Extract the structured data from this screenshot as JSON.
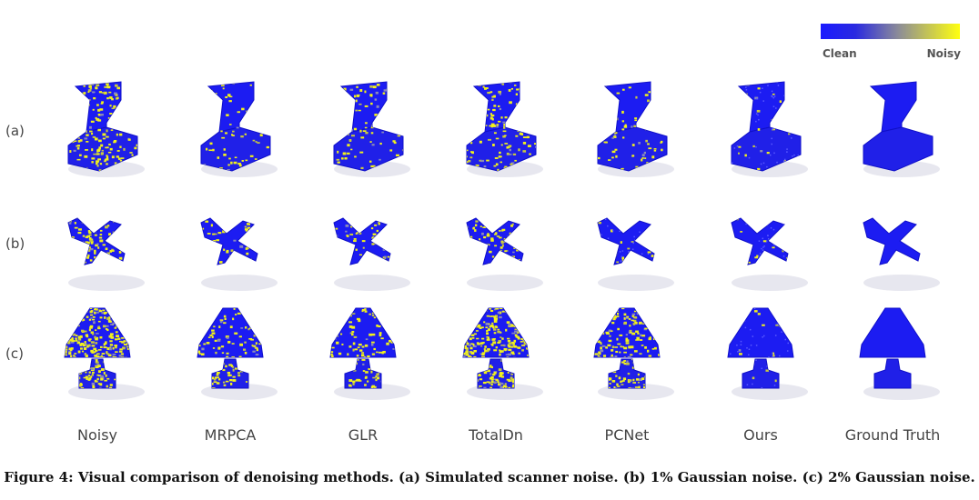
{
  "legend": {
    "low_label": "Clean",
    "high_label": "Noisy",
    "low_color": "#1a1aff",
    "high_color": "#ffff10"
  },
  "rows": [
    {
      "label": "(a)",
      "shape": "chair"
    },
    {
      "label": "(b)",
      "shape": "airplane"
    },
    {
      "label": "(c)",
      "shape": "lamp"
    }
  ],
  "columns": [
    {
      "label": "Noisy"
    },
    {
      "label": "MRPCA"
    },
    {
      "label": "GLR"
    },
    {
      "label": "TotalDn"
    },
    {
      "label": "PCNet"
    },
    {
      "label": "Ours"
    },
    {
      "label": "Ground Truth"
    }
  ],
  "noise_levels": [
    [
      0.45,
      0.18,
      0.18,
      0.3,
      0.16,
      0.06,
      0.0
    ],
    [
      0.55,
      0.22,
      0.22,
      0.38,
      0.08,
      0.05,
      0.0
    ],
    [
      0.8,
      0.45,
      0.32,
      0.78,
      0.55,
      0.06,
      0.0
    ]
  ],
  "caption": "Figure 4: Visual comparison of denoising methods. (a) Simulated scanner noise. (b) 1% Gaussian noise. (c) 2% Gaussian noise."
}
